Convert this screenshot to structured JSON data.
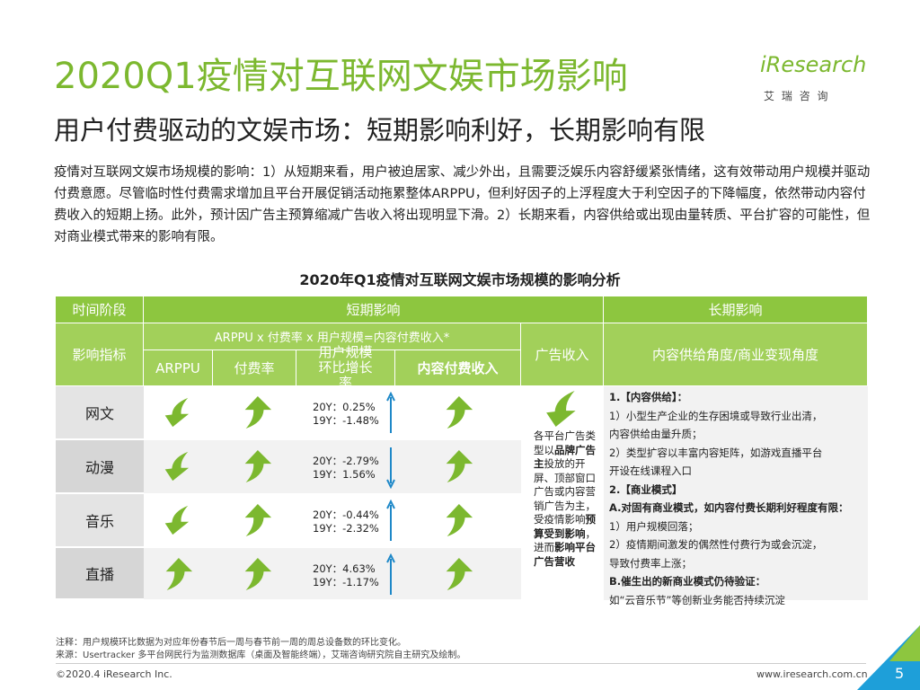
{
  "header": {
    "title": "2020Q1疫情对互联网文娱市场影响",
    "subtitle": "用户付费驱动的文娱市场：短期影响利好，长期影响有限",
    "logo": "iResearch",
    "logo_cn": "艾 瑞 咨 询"
  },
  "intro": "疫情对互联网文娱市场规模的影响：1）从短期来看，用户被迫居家、减少外出，且需要泛娱乐内容舒缓紧张情绪，这有效带动用户规模并驱动付费意愿。尽管临时性付费需求增加且平台开展促销活动拖累整体ARPPU，但利好因子的上浮程度大于利空因子的下降幅度，依然带动内容付费收入的短期上扬。此外，预计因广告主预算缩减广告收入将出现明显下滑。2）长期来看，内容供给或出现由量转质、平台扩容的可能性，但对商业模式带来的影响有限。",
  "table": {
    "title": "2020年Q1疫情对互联网文娱市场规模的影响分析",
    "header_row": [
      "时间阶段",
      "短期影响",
      "长期影响"
    ],
    "metric_label": "影响指标",
    "formula": "ARPPU x 付费率 x 用户规模=内容付费收入*",
    "ad_label": "广告收入",
    "long_label": "内容供给角度/商业变现角度",
    "sub_headers": [
      "ARPPU",
      "付费率",
      "用户规模环比增长率",
      "内容付费收入"
    ],
    "rows": [
      {
        "name": "网文",
        "user_scale": [
          "20Y：0.25%",
          "19Y：-1.48%"
        ]
      },
      {
        "name": "动漫",
        "user_scale": [
          "20Y：-2.79%",
          "19Y：1.56%"
        ]
      },
      {
        "name": "音乐",
        "user_scale": [
          "20Y：-0.44%",
          "19Y：-2.32%"
        ]
      },
      {
        "name": "直播",
        "user_scale": [
          "20Y：4.63%",
          "19Y：-1.17%"
        ]
      }
    ],
    "ad_note": [
      "各平台广告类型以",
      "品牌广告主",
      "投放的开屏、顶部窗口广告或内容营销广告为主，受疫情影响",
      "预算受到影响",
      "，进而",
      "影响平台广告营收"
    ],
    "long_term": [
      "1.【内容供给】：",
      "1）小型生产企业的生存困境或导致行业出清，",
      "内容供给由量升质；",
      "2）类型扩容以丰富内容矩阵，如游戏直播平台",
      "开设在线课程入口",
      "2.【商业模式】",
      "A.对固有商业模式，如内容付费长期利好程度有限：",
      "1）用户规模回落；",
      "2）疫情期间激发的偶然性付费行为或会沉淀，",
      "导致付费率上涨；",
      "B.催生出的新商业模式仍待验证：",
      "如“云音乐节”等创新业务能否持续沉淀"
    ]
  },
  "footer": {
    "note": "注释：用户规模环比数据为对应年份春节后一周与春节前一周的周总设备数的环比变化。",
    "source": "来源：Usertracker 多平台网民行为监测数据库（桌面及智能终端），艾瑞咨询研究院自主研究及绘制。",
    "copyright": "©2020.4 iResearch Inc.",
    "website": "www.iresearch.com.cn",
    "page": "5"
  }
}
